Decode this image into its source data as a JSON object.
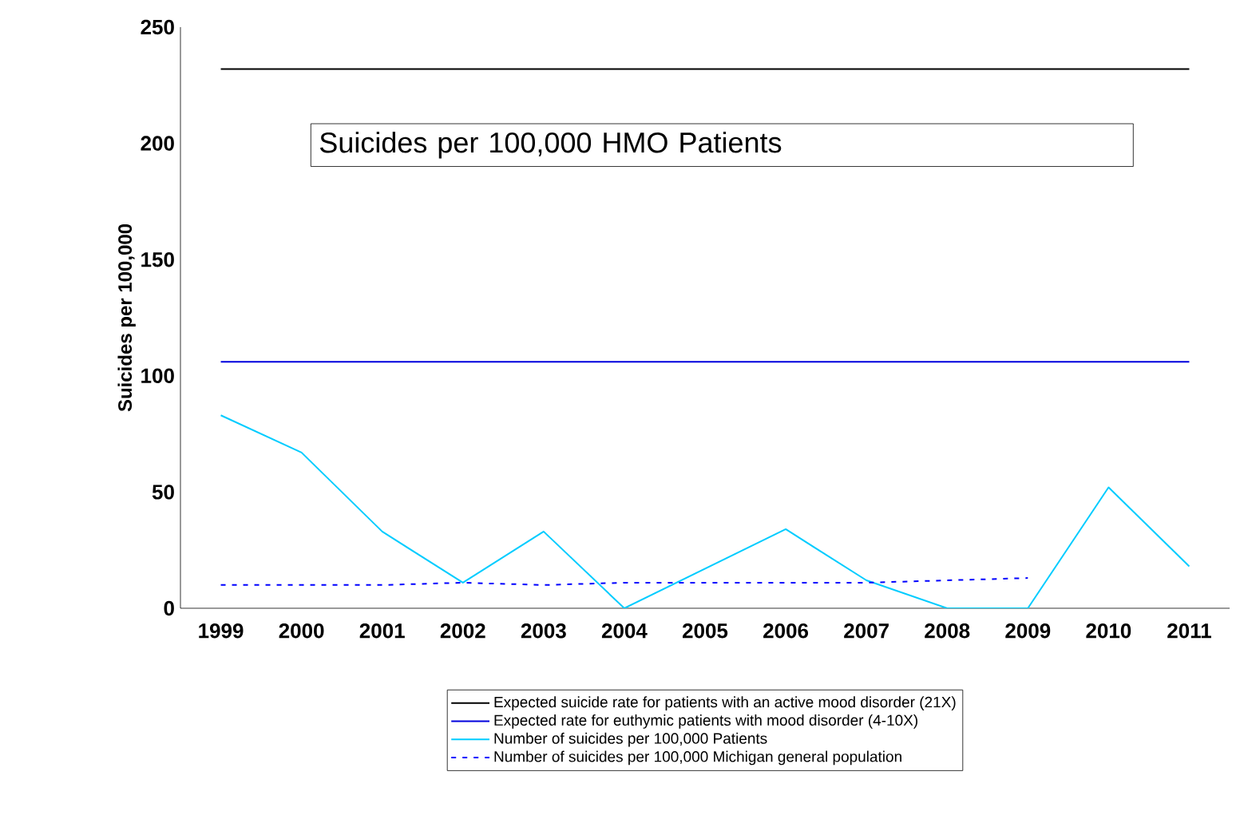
{
  "chart_data": {
    "type": "line",
    "title": "Suicides per 100,000 HMO Patients",
    "ylabel": "Suicides per 100,000",
    "categories": [
      "1999",
      "2000",
      "2001",
      "2002",
      "2003",
      "2004",
      "2005",
      "2006",
      "2007",
      "2008",
      "2009",
      "2010",
      "2011"
    ],
    "ylim": [
      0,
      250
    ],
    "yticks": [
      0,
      50,
      100,
      150,
      200,
      250
    ],
    "grid": false,
    "legend": "bottom",
    "marker": "none",
    "series": [
      {
        "name": "Expected suicide rate for patients with an active mood disorder (21X)",
        "color": "#000000",
        "line_style": "solid",
        "values": [
          232,
          232,
          232,
          232,
          232,
          232,
          232,
          232,
          232,
          232,
          232,
          232,
          232
        ]
      },
      {
        "name": "Expected rate for euthymic patients with mood disorder (4-10X)",
        "color": "#0000dd",
        "line_style": "solid",
        "values": [
          106,
          106,
          106,
          106,
          106,
          106,
          106,
          106,
          106,
          106,
          106,
          106,
          106
        ]
      },
      {
        "name": "Number of suicides per 100,000 Patients",
        "color": "#00ccff",
        "line_style": "solid",
        "values": [
          83,
          67,
          33,
          11,
          33,
          0,
          17,
          34,
          12,
          0,
          0,
          52,
          18
        ]
      },
      {
        "name": "Number of suicides per 100,000 Michigan general population",
        "color": "#0000ff",
        "line_style": "dashed",
        "values": [
          10,
          10,
          10,
          11,
          10,
          11,
          11,
          11,
          11,
          12,
          13,
          null,
          null
        ]
      }
    ]
  }
}
